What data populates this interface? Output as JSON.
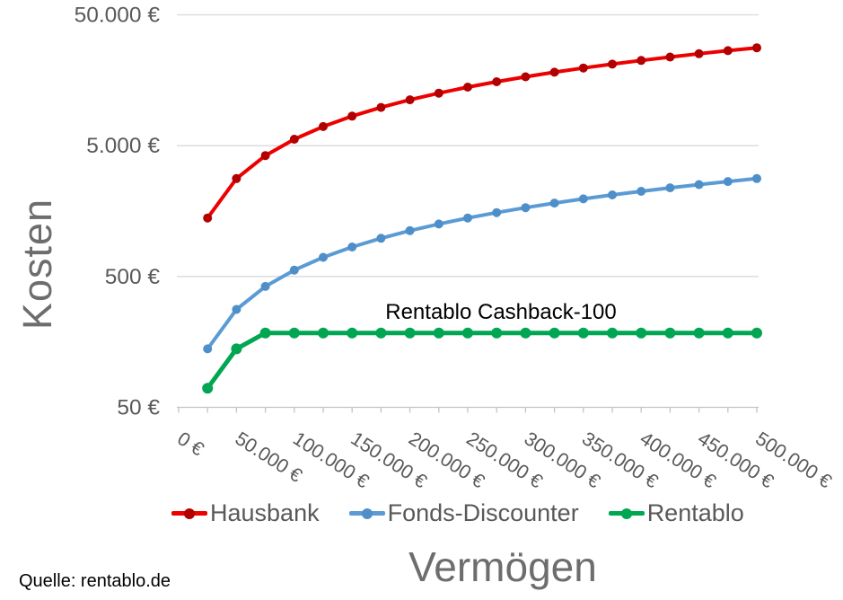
{
  "chart_data": {
    "type": "line",
    "title": "",
    "xlabel": "Vermögen",
    "ylabel": "Kosten",
    "annotation": "Rentablo Cashback-100",
    "y_scale": "log",
    "xlim": [
      0,
      500000
    ],
    "ylim": [
      50,
      50000
    ],
    "grid": "horizontal-only",
    "legend_position": "bottom",
    "x": [
      25000,
      50000,
      75000,
      100000,
      125000,
      150000,
      175000,
      200000,
      225000,
      250000,
      275000,
      300000,
      325000,
      350000,
      375000,
      400000,
      425000,
      450000,
      475000,
      500000
    ],
    "x_ticks": {
      "minor_step": 25000,
      "labels": [
        {
          "value": 0,
          "label": "0 €"
        },
        {
          "value": 50000,
          "label": "50.000 €"
        },
        {
          "value": 100000,
          "label": "100.000 €"
        },
        {
          "value": 150000,
          "label": "150.000 €"
        },
        {
          "value": 200000,
          "label": "200.000 €"
        },
        {
          "value": 250000,
          "label": "250.000 €"
        },
        {
          "value": 300000,
          "label": "300.000 €"
        },
        {
          "value": 350000,
          "label": "350.000 €"
        },
        {
          "value": 400000,
          "label": "400.000 €"
        },
        {
          "value": 450000,
          "label": "450.000 €"
        },
        {
          "value": 500000,
          "label": "500.000 €"
        }
      ]
    },
    "y_ticks": [
      {
        "value": 50000,
        "label": "50.000 €"
      },
      {
        "value": 5000,
        "label": "5.000 €"
      },
      {
        "value": 500,
        "label": "500 €"
      },
      {
        "value": 50,
        "label": "50 €"
      }
    ],
    "series": [
      {
        "name": "Hausbank",
        "color": "#ec0000",
        "marker_color": "#b20000",
        "line_width": 4,
        "marker_radius": 5,
        "values": [
          1400,
          2800,
          4200,
          5600,
          7000,
          8400,
          9800,
          11200,
          12600,
          14000,
          15400,
          16800,
          18200,
          19600,
          21000,
          22400,
          23800,
          25200,
          26600,
          28000
        ]
      },
      {
        "name": "Fonds-Discounter",
        "color": "#5b9bd5",
        "marker_color": "#4f8fc9",
        "line_width": 4,
        "marker_radius": 5,
        "values": [
          140,
          280,
          420,
          560,
          700,
          840,
          980,
          1120,
          1260,
          1400,
          1540,
          1680,
          1820,
          1960,
          2100,
          2240,
          2380,
          2520,
          2660,
          2800
        ]
      },
      {
        "name": "Rentablo",
        "color": "#00a651",
        "marker_color": "#00a651",
        "line_width": 5,
        "marker_radius": 6,
        "values": [
          70,
          140,
          185,
          185,
          185,
          185,
          185,
          185,
          185,
          185,
          185,
          185,
          185,
          185,
          185,
          185,
          185,
          185,
          185,
          185
        ]
      }
    ]
  },
  "footer": {
    "source": "Quelle: rentablo.de"
  },
  "colors": {
    "axis_text": "#595959",
    "axis_title": "#6d6d6d",
    "gridline": "#d9d9d9",
    "axis_line": "#c4c4c4",
    "annotation": "#000000",
    "background": "#ffffff"
  }
}
